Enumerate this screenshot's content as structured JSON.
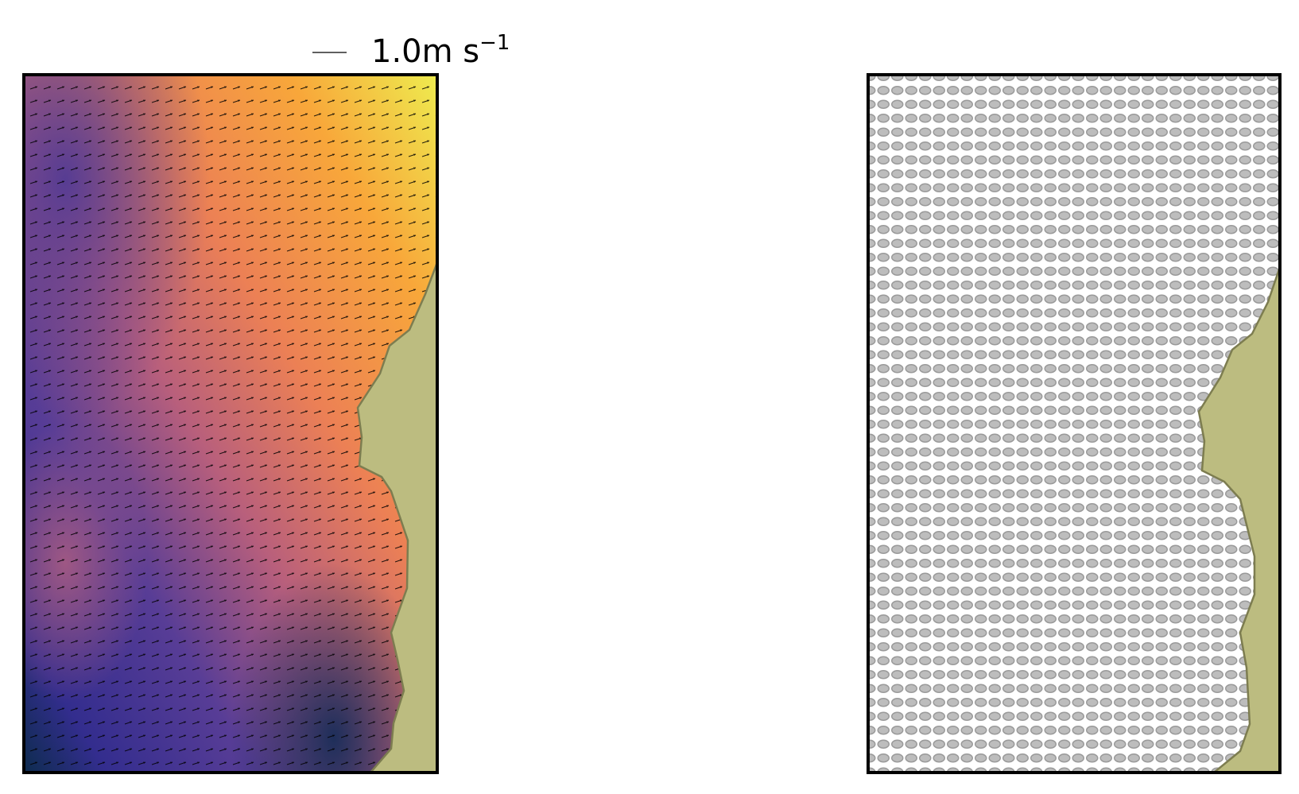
{
  "quiver_key": {
    "text": "1.0m s",
    "superscript": "−1"
  }
}
